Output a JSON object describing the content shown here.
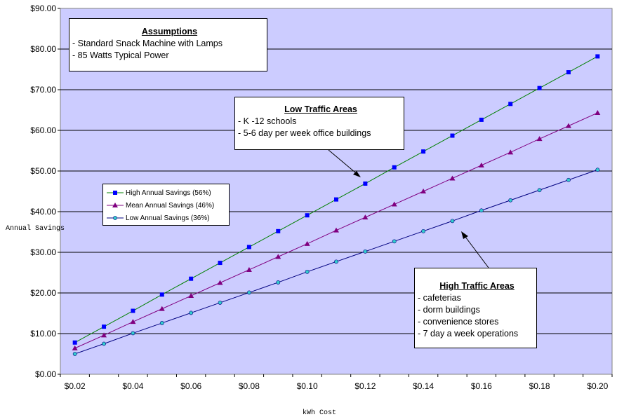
{
  "chart_data": {
    "type": "line",
    "xlabel": "kWh Cost",
    "ylabel": "Annual Savings",
    "x": [
      0.02,
      0.03,
      0.04,
      0.05,
      0.06,
      0.07,
      0.08,
      0.09,
      0.1,
      0.11,
      0.12,
      0.13,
      0.14,
      0.15,
      0.16,
      0.17,
      0.18,
      0.19,
      0.2
    ],
    "x_ticks": [
      "$0.02",
      "$0.04",
      "$0.06",
      "$0.08",
      "$0.10",
      "$0.12",
      "$0.14",
      "$0.16",
      "$0.18",
      "$0.20"
    ],
    "y_ticks": [
      "$0.00",
      "$10.00",
      "$20.00",
      "$30.00",
      "$40.00",
      "$50.00",
      "$60.00",
      "$70.00",
      "$80.00",
      "$90.00"
    ],
    "ylim": [
      0,
      90
    ],
    "grid": "horizontal",
    "plot_background": "#ccccff",
    "series": [
      {
        "name": "High Annual Savings (56%)",
        "color": "#008000",
        "marker_color": "#0000ff",
        "marker": "square",
        "values": [
          7.8,
          11.7,
          15.6,
          19.6,
          23.5,
          27.4,
          31.3,
          35.2,
          39.1,
          43.0,
          46.9,
          50.9,
          54.8,
          58.7,
          62.6,
          66.5,
          70.4,
          74.3,
          78.2
        ]
      },
      {
        "name": "Mean Annual Savings (46%)",
        "color": "#800080",
        "marker_color": "#800080",
        "marker": "triangle",
        "values": [
          6.4,
          9.6,
          12.9,
          16.1,
          19.3,
          22.5,
          25.7,
          28.9,
          32.1,
          35.4,
          38.6,
          41.8,
          45.0,
          48.2,
          51.4,
          54.6,
          57.9,
          61.1,
          64.3
        ]
      },
      {
        "name": "Low Annual Savings (36%)",
        "color": "#000080",
        "marker_color": "#33cccc",
        "marker": "star",
        "values": [
          5.0,
          7.5,
          10.1,
          12.6,
          15.1,
          17.6,
          20.1,
          22.6,
          25.2,
          27.7,
          30.2,
          32.7,
          35.2,
          37.7,
          40.3,
          42.8,
          45.3,
          47.8,
          50.3
        ]
      }
    ],
    "legend_position": "left-middle",
    "annotations": {
      "assumptions": {
        "title": "Assumptions",
        "lines": [
          "- Standard Snack Machine with Lamps",
          "- 85 Watts Typical Power"
        ]
      },
      "low_traffic": {
        "title": "Low Traffic Areas",
        "lines": [
          "- K -12 schools",
          "- 5-6 day per week office buildings"
        ]
      },
      "high_traffic": {
        "title": "High Traffic Areas",
        "lines": [
          "- cafeterias",
          "- dorm buildings",
          "- convenience stores",
          "- 7 day a week operations"
        ]
      }
    }
  }
}
